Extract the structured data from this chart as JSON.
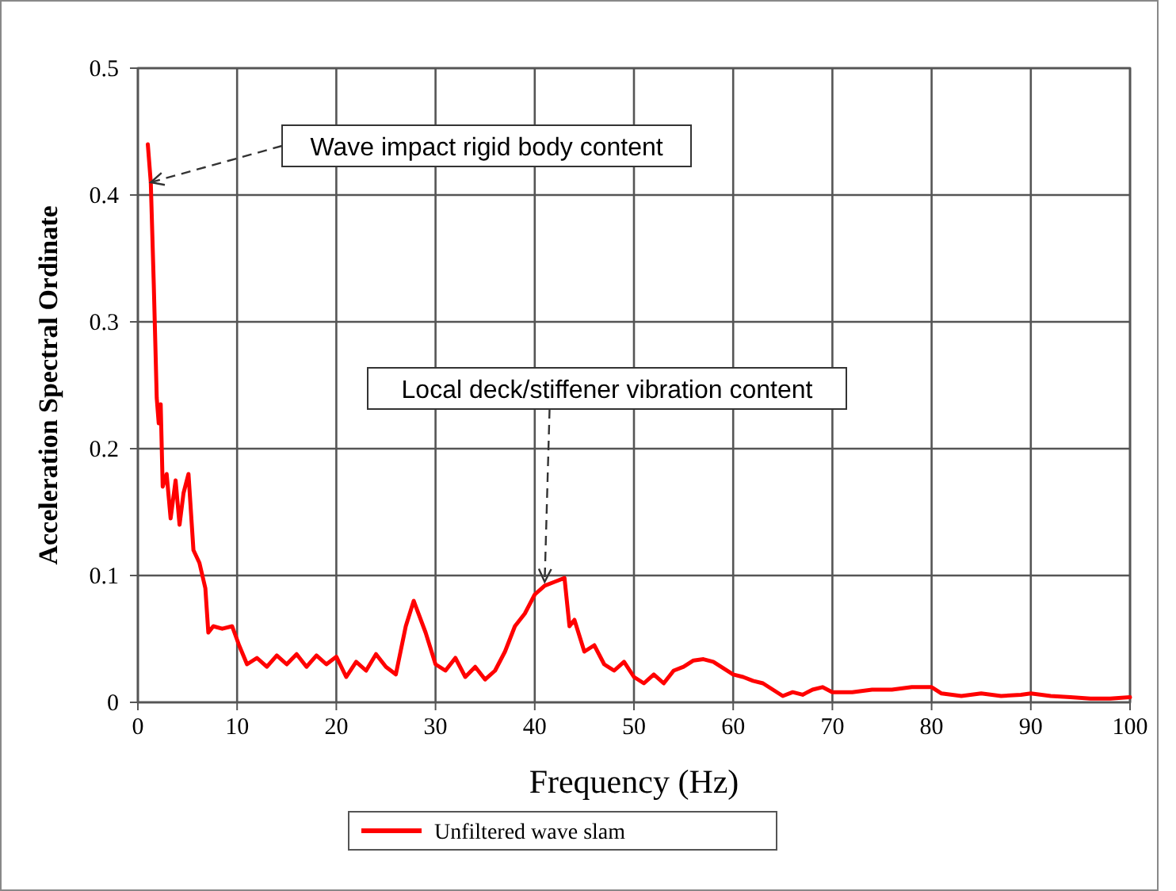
{
  "chart_data": {
    "type": "line",
    "xlabel": "Frequency (Hz)",
    "ylabel": "Acceleration Spectral Ordinate",
    "xlim": [
      0,
      100
    ],
    "xticks": [
      0,
      10,
      20,
      30,
      40,
      50,
      60,
      70,
      80,
      90,
      100
    ],
    "ylim": [
      0,
      0.5
    ],
    "yticks": [
      0,
      0.1,
      0.2,
      0.3,
      0.4,
      0.5
    ],
    "grid": true,
    "legend": "bottom",
    "marker": "none",
    "line_style": "solid",
    "annotations": [
      {
        "text": "Wave impact rigid body content",
        "x": 1.3,
        "y": 0.41
      },
      {
        "text": "Local deck/stiffener vibration content",
        "x": 41,
        "y": 0.095
      }
    ],
    "series": [
      {
        "name": "Unfiltered wave slam",
        "color": "#ff0000",
        "x": [
          1.0,
          1.3,
          1.6,
          1.9,
          2.1,
          2.3,
          2.5,
          2.9,
          3.3,
          3.8,
          4.2,
          4.6,
          5.1,
          5.6,
          6.2,
          6.8,
          7.1,
          7.6,
          8.5,
          9.5,
          10.2,
          11,
          12,
          13,
          14,
          15,
          16,
          17,
          18,
          19,
          20,
          21,
          22,
          23,
          24,
          25,
          26,
          27,
          27.8,
          29,
          30,
          31,
          32,
          33,
          34,
          35,
          36,
          37,
          38,
          39,
          40,
          41,
          42,
          43,
          43.5,
          44,
          45,
          46,
          47,
          48,
          49,
          50,
          51,
          52,
          53,
          54,
          55,
          56,
          57,
          58,
          59,
          60,
          61,
          62,
          63,
          64,
          65,
          66,
          67,
          68,
          69,
          70,
          72,
          74,
          76,
          78,
          80,
          81,
          83,
          85,
          87,
          89,
          90,
          92,
          94,
          96,
          98,
          100
        ],
        "values": [
          0.44,
          0.41,
          0.33,
          0.24,
          0.22,
          0.235,
          0.17,
          0.18,
          0.145,
          0.175,
          0.14,
          0.165,
          0.18,
          0.12,
          0.11,
          0.09,
          0.055,
          0.06,
          0.058,
          0.06,
          0.045,
          0.03,
          0.035,
          0.028,
          0.037,
          0.03,
          0.038,
          0.028,
          0.037,
          0.03,
          0.036,
          0.02,
          0.032,
          0.025,
          0.038,
          0.028,
          0.022,
          0.06,
          0.08,
          0.055,
          0.03,
          0.025,
          0.035,
          0.02,
          0.028,
          0.018,
          0.025,
          0.04,
          0.06,
          0.07,
          0.085,
          0.092,
          0.095,
          0.098,
          0.06,
          0.065,
          0.04,
          0.045,
          0.03,
          0.025,
          0.032,
          0.02,
          0.015,
          0.022,
          0.015,
          0.025,
          0.028,
          0.033,
          0.034,
          0.032,
          0.027,
          0.022,
          0.02,
          0.017,
          0.015,
          0.01,
          0.005,
          0.008,
          0.006,
          0.01,
          0.012,
          0.008,
          0.008,
          0.01,
          0.01,
          0.012,
          0.012,
          0.007,
          0.005,
          0.007,
          0.005,
          0.006,
          0.007,
          0.005,
          0.004,
          0.003,
          0.003,
          0.004
        ]
      }
    ]
  }
}
